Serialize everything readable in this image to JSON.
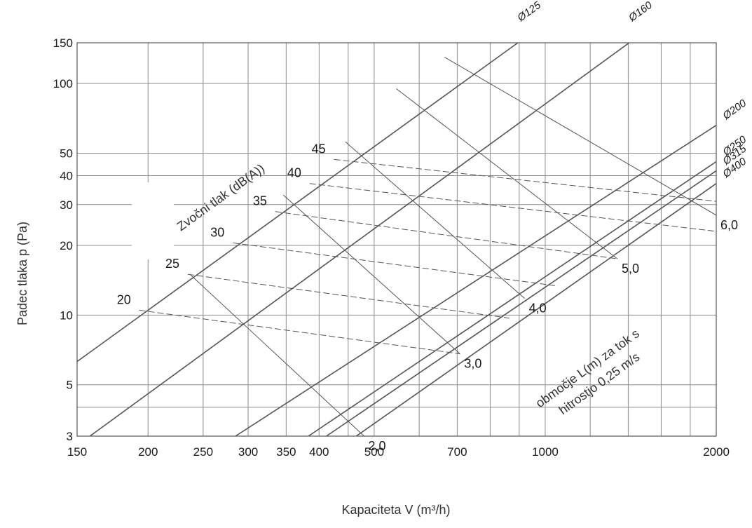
{
  "chart_data": {
    "type": "line",
    "x_scale": "log",
    "y_scale": "log",
    "xlim": [
      150,
      2000
    ],
    "ylim": [
      3,
      150
    ],
    "grid": true,
    "xlabel": "Kapaciteta V (m³/h)",
    "ylabel": "Padec tlaka p (Pa)",
    "x_tick_labels": [
      150,
      200,
      250,
      300,
      350,
      400,
      500,
      700,
      1000,
      2000
    ],
    "x_grid_lines": [
      150,
      200,
      250,
      300,
      350,
      400,
      450,
      500,
      600,
      700,
      800,
      900,
      1000,
      1200,
      1400,
      1600,
      1800,
      2000
    ],
    "y_tick_labels": [
      3,
      5,
      10,
      20,
      30,
      40,
      50,
      100,
      150
    ],
    "y_grid_lines": [
      3,
      4,
      5,
      10,
      20,
      30,
      40,
      50,
      100,
      150
    ],
    "duct_series": [
      {
        "name": "Ø125",
        "x": [
          150,
          895
        ],
        "y": [
          6.3,
          150
        ]
      },
      {
        "name": "Ø160",
        "x": [
          158,
          1405
        ],
        "y": [
          3,
          150
        ]
      },
      {
        "name": "Ø200",
        "x": [
          285,
          2000
        ],
        "y": [
          3,
          66
        ]
      },
      {
        "name": "Ø250",
        "x": [
          383,
          2000
        ],
        "y": [
          3,
          46
        ]
      },
      {
        "name": "Ø315",
        "x": [
          412,
          2000
        ],
        "y": [
          3,
          42
        ]
      },
      {
        "name": "Ø400",
        "x": [
          465,
          2000
        ],
        "y": [
          3,
          37
        ]
      }
    ],
    "sound_series_title": "Zvočni tlak (dB(A))",
    "sound_series": [
      {
        "name": "20",
        "x": [
          193,
          708
        ],
        "y": [
          10.5,
          6.8
        ]
      },
      {
        "name": "25",
        "x": [
          235,
          865
        ],
        "y": [
          15.0,
          9.7
        ]
      },
      {
        "name": "30",
        "x": [
          282,
          1040
        ],
        "y": [
          20.5,
          13.4
        ]
      },
      {
        "name": "35",
        "x": [
          335,
          1340
        ],
        "y": [
          28.0,
          17.5
        ]
      },
      {
        "name": "40",
        "x": [
          385,
          2000
        ],
        "y": [
          37.0,
          23.0
        ]
      },
      {
        "name": "45",
        "x": [
          425,
          2000
        ],
        "y": [
          47.0,
          31.0
        ]
      }
    ],
    "length_series_title": "območje L(m) za tok s hitrostjo 0,25 m/s",
    "length_series": [
      {
        "name": "2,0",
        "x": [
          237,
          480
        ],
        "y": [
          15.0,
          3.0
        ]
      },
      {
        "name": "3,0",
        "x": [
          346,
          708
        ],
        "y": [
          33.0,
          6.8
        ]
      },
      {
        "name": "4,0",
        "x": [
          445,
          920
        ],
        "y": [
          56.0,
          11.8
        ]
      },
      {
        "name": "5,0",
        "x": [
          547,
          1340
        ],
        "y": [
          95.0,
          17.5
        ]
      },
      {
        "name": "6,0",
        "x": [
          665,
          2000
        ],
        "y": [
          130.0,
          27.0
        ]
      }
    ]
  }
}
